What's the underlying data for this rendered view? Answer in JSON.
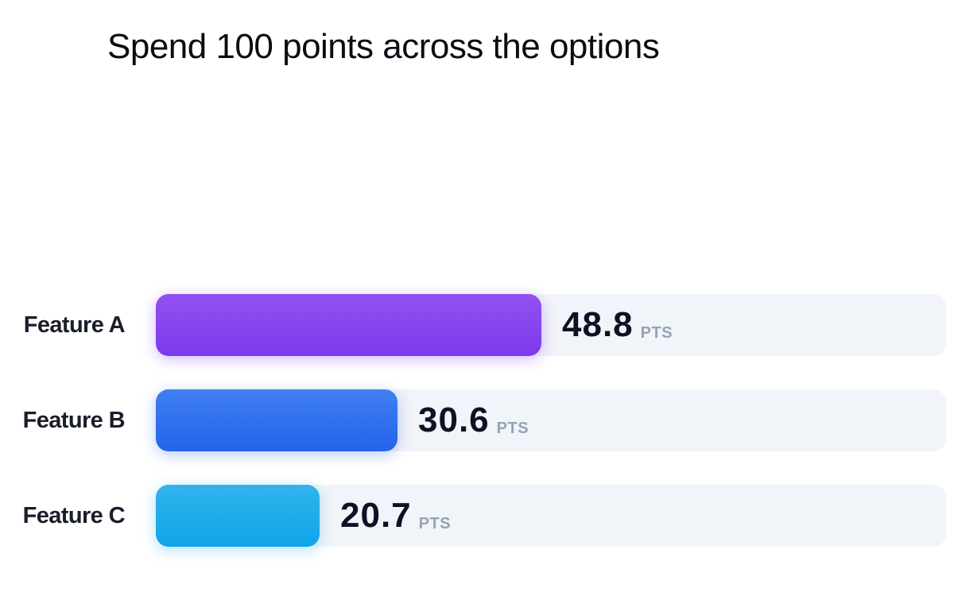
{
  "title": "Spend 100 points across the options",
  "unit": "PTS",
  "chart_data": {
    "type": "bar",
    "orientation": "horizontal",
    "title": "Spend 100 points across the options",
    "categories": [
      "Feature A",
      "Feature B",
      "Feature C"
    ],
    "values": [
      48.8,
      30.6,
      20.7
    ],
    "value_labels": [
      "48.8",
      "30.6",
      "20.7"
    ],
    "unit": "PTS",
    "xlim": [
      0,
      100
    ],
    "grid": false,
    "legend": "none",
    "colors": [
      {
        "top": "#9350f2",
        "bottom": "#7c3aed"
      },
      {
        "top": "#3f7ff0",
        "bottom": "#2563eb"
      },
      {
        "top": "#33b3ec",
        "bottom": "#0ea5e9"
      }
    ],
    "track_color": "#f1f4f8"
  }
}
